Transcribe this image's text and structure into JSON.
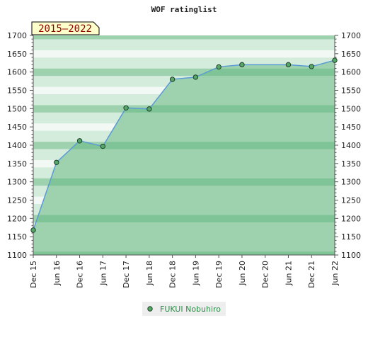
{
  "chart_data": {
    "type": "area",
    "title": "WOF ratinglist",
    "period_label": "2015–2022",
    "x_tick_labels": [
      "Dec 15",
      "Jun 16",
      "Dec 16",
      "Jun 17",
      "Dec 17",
      "Jun 18",
      "Dec 18",
      "Jun 19",
      "Dec 19",
      "Jun 20",
      "Dec 20",
      "Jun 21",
      "Dec 21",
      "Jun 22"
    ],
    "ylim": [
      1100,
      1700
    ],
    "y_ticks": [
      1100,
      1150,
      1200,
      1250,
      1300,
      1350,
      1400,
      1450,
      1500,
      1550,
      1600,
      1650,
      1700
    ],
    "y_minor_step": 10,
    "grid": false,
    "legend_position": "bottom-center",
    "series": [
      {
        "name": "FUKUI Nobuhiro",
        "x": [
          "Dec 15",
          "Jun 16",
          "Dec 16",
          "Jun 17",
          "Dec 17",
          "Jun 18",
          "Dec 18",
          "Jun 19",
          "Dec 19",
          "Jun 20",
          "Jun 21",
          "Dec 21",
          "Jun 22"
        ],
        "values": [
          1168,
          1353,
          1412,
          1397,
          1502,
          1499,
          1580,
          1586,
          1614,
          1620,
          1620,
          1615,
          1632
        ]
      }
    ],
    "colors": {
      "line": "#5b9bd5",
      "marker_fill": "#55a868",
      "marker_stroke": "#1f3f28",
      "band_dark": "#7fc497",
      "band_mid": "#9ed2ae",
      "band_light": "#d4ecdc",
      "band_lightest": "#f2f9f4",
      "period_box_bg": "#ffffcc",
      "period_text": "#8b0000",
      "legend_bg": "#eeeeee",
      "legend_text": "#2e8b4a"
    }
  }
}
